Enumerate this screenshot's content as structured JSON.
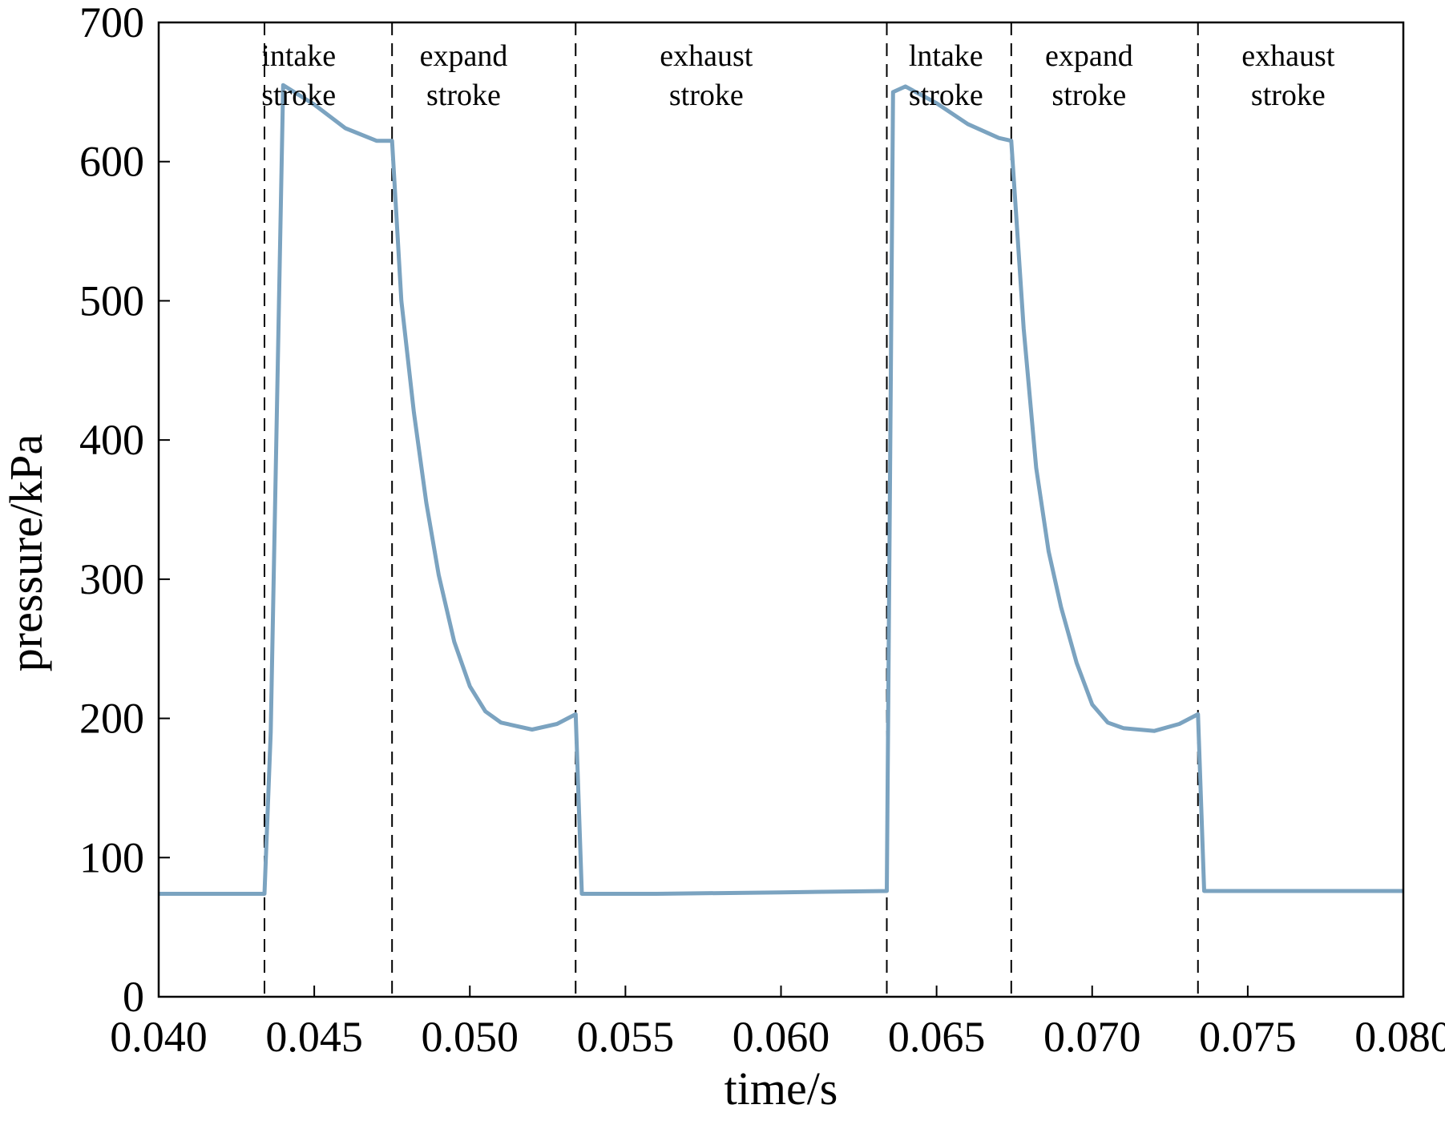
{
  "chart_data": {
    "type": "line",
    "title": "",
    "xlabel": "time/s",
    "ylabel": "pressure/kPa",
    "xlim": [
      0.04,
      0.08
    ],
    "ylim": [
      0,
      700
    ],
    "xticks": [
      "0.040",
      "0.045",
      "0.050",
      "0.055",
      "0.060",
      "0.065",
      "0.070",
      "0.075",
      "0.080"
    ],
    "yticks": [
      "0",
      "100",
      "200",
      "300",
      "400",
      "500",
      "600",
      "700"
    ],
    "xtick_values": [
      0.04,
      0.045,
      0.05,
      0.055,
      0.06,
      0.065,
      0.07,
      0.075,
      0.08
    ],
    "ytick_values": [
      0,
      100,
      200,
      300,
      400,
      500,
      600,
      700
    ],
    "grid": false,
    "line_color": "#7ba3c0",
    "dashed_lines_x": [
      0.0434,
      0.0475,
      0.0534,
      0.0634,
      0.0674,
      0.0734
    ],
    "phases": [
      {
        "line1": "intake",
        "line2": "stroke",
        "x_center": 0.0445
      },
      {
        "line1": "expand",
        "line2": "stroke",
        "x_center": 0.0498
      },
      {
        "line1": "exhaust",
        "line2": "stroke",
        "x_center": 0.0576
      },
      {
        "line1": "lntake",
        "line2": "stroke",
        "x_center": 0.0653
      },
      {
        "line1": "expand",
        "line2": "stroke",
        "x_center": 0.0699
      },
      {
        "line1": "exhaust",
        "line2": "stroke",
        "x_center": 0.0763
      }
    ],
    "series": [
      {
        "x": [
          0.04,
          0.0434,
          0.0436,
          0.044,
          0.045,
          0.046,
          0.047,
          0.0475,
          0.0478,
          0.0482,
          0.0486,
          0.049,
          0.0495,
          0.05,
          0.0505,
          0.051,
          0.052,
          0.0528,
          0.0534,
          0.0536,
          0.056,
          0.06,
          0.0634,
          0.0636,
          0.064,
          0.065,
          0.066,
          0.067,
          0.0674,
          0.0678,
          0.0682,
          0.0686,
          0.069,
          0.0695,
          0.07,
          0.0705,
          0.071,
          0.072,
          0.0728,
          0.0734,
          0.0736,
          0.076,
          0.08
        ],
        "y": [
          74,
          74,
          190,
          655,
          641,
          624,
          615,
          615,
          500,
          420,
          355,
          303,
          255,
          223,
          205,
          197,
          192,
          196,
          203,
          74,
          74,
          75,
          76,
          650,
          654,
          642,
          627,
          617,
          615,
          480,
          380,
          320,
          280,
          240,
          210,
          197,
          193,
          191,
          196,
          203,
          76,
          76,
          76
        ]
      }
    ]
  }
}
